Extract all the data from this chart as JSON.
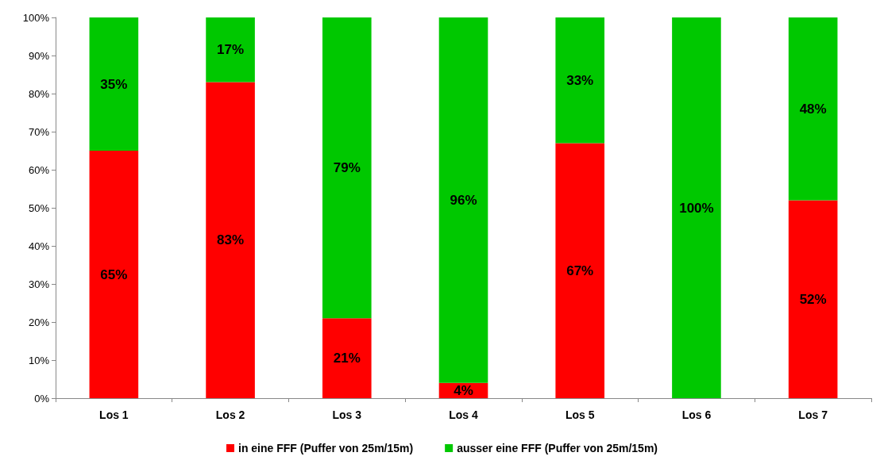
{
  "chart_data": {
    "type": "bar",
    "stacked": true,
    "categories": [
      "Los 1",
      "Los 2",
      "Los 3",
      "Los 4",
      "Los 5",
      "Los 6",
      "Los 7"
    ],
    "series": [
      {
        "name": "in eine FFF (Puffer von 25m/15m)",
        "color": "#ff0000",
        "values": [
          65,
          83,
          21,
          4,
          67,
          0,
          52
        ],
        "value_labels": [
          "65%",
          "83%",
          "21%",
          "4%",
          "67%",
          null,
          "52%"
        ]
      },
      {
        "name": "ausser eine FFF (Puffer von 25m/15m)",
        "color": "#00c800",
        "values": [
          35,
          17,
          79,
          96,
          33,
          100,
          48
        ],
        "value_labels": [
          "35%",
          "17%",
          "79%",
          "96%",
          "33%",
          "100%",
          "48%"
        ]
      }
    ],
    "ylim": [
      0,
      100
    ],
    "yticks": [
      {
        "value": 0,
        "label": "0%"
      },
      {
        "value": 10,
        "label": "10%"
      },
      {
        "value": 20,
        "label": "20%"
      },
      {
        "value": 30,
        "label": "30%"
      },
      {
        "value": 40,
        "label": "40%"
      },
      {
        "value": 50,
        "label": "50%"
      },
      {
        "value": 60,
        "label": "60%"
      },
      {
        "value": 70,
        "label": "70%"
      },
      {
        "value": 80,
        "label": "80%"
      },
      {
        "value": 90,
        "label": "90%"
      },
      {
        "value": 100,
        "label": "100%"
      }
    ],
    "legend": "bottom"
  }
}
